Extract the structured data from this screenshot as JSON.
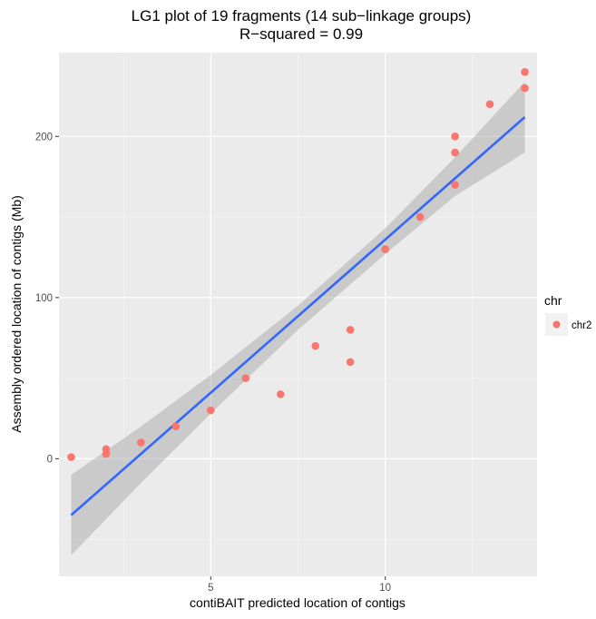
{
  "chart_data": {
    "type": "scatter",
    "title": "LG1 plot of 19 fragments (14 sub−linkage groups)",
    "subtitle": "R−squared = 0.99",
    "xlabel": "contiBAIT predicted location of contigs",
    "ylabel": "Assembly ordered location of contigs (Mb)",
    "xlim": [
      0.65,
      14.35
    ],
    "ylim": [
      -73,
      252
    ],
    "x_ticks": [
      5,
      10
    ],
    "x_tick_labels": [
      "5",
      "10"
    ],
    "x_minor_ticks": [
      2.5,
      7.5,
      12.5
    ],
    "y_ticks": [
      0,
      100,
      200
    ],
    "y_tick_labels": [
      "0",
      "100",
      "200"
    ],
    "y_minor_ticks": [
      -50,
      50,
      150
    ],
    "grid": true,
    "legend": {
      "title": "chr",
      "position": "right",
      "entries": [
        "chr2"
      ]
    },
    "series": [
      {
        "name": "chr2",
        "color": "#F8766D",
        "points": [
          {
            "x": 1,
            "y": 1
          },
          {
            "x": 2,
            "y": 3
          },
          {
            "x": 2,
            "y": 6
          },
          {
            "x": 3,
            "y": 10
          },
          {
            "x": 4,
            "y": 20
          },
          {
            "x": 5,
            "y": 30
          },
          {
            "x": 6,
            "y": 50
          },
          {
            "x": 7,
            "y": 40
          },
          {
            "x": 8,
            "y": 70
          },
          {
            "x": 9,
            "y": 60
          },
          {
            "x": 9,
            "y": 80
          },
          {
            "x": 10,
            "y": 130
          },
          {
            "x": 11,
            "y": 150
          },
          {
            "x": 12,
            "y": 170
          },
          {
            "x": 12,
            "y": 190
          },
          {
            "x": 12,
            "y": 200
          },
          {
            "x": 13,
            "y": 220
          },
          {
            "x": 14,
            "y": 230
          },
          {
            "x": 14,
            "y": 240
          }
        ]
      }
    ],
    "fit": {
      "method": "linear",
      "color": "#3366FF",
      "band_color": "#999999",
      "line": [
        {
          "x": 1,
          "y": -35
        },
        {
          "x": 14,
          "y": 212
        }
      ],
      "band": [
        {
          "x": 1,
          "lower": -60,
          "upper": -10
        },
        {
          "x": 3,
          "lower": -15,
          "upper": 20
        },
        {
          "x": 5,
          "lower": 28,
          "upper": 52
        },
        {
          "x": 7.5,
          "lower": 80,
          "upper": 95
        },
        {
          "x": 10,
          "lower": 127,
          "upper": 143
        },
        {
          "x": 12,
          "lower": 163,
          "upper": 187
        },
        {
          "x": 14,
          "lower": 190,
          "upper": 234
        }
      ]
    }
  }
}
